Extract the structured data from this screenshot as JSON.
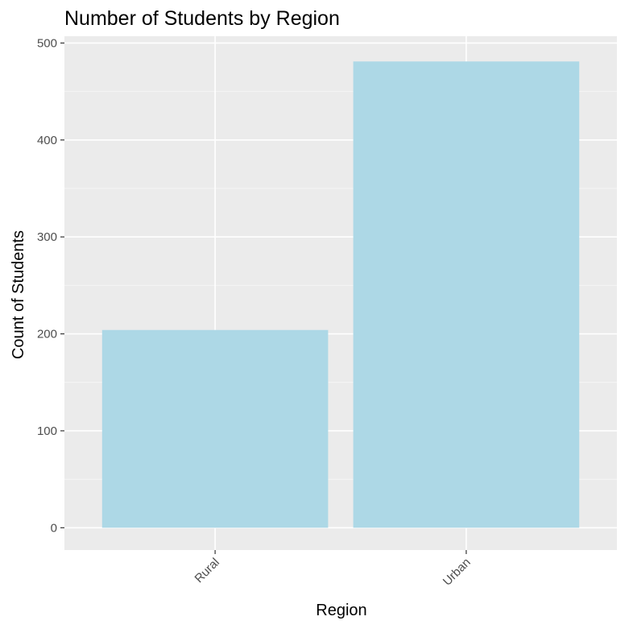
{
  "chart_data": {
    "type": "bar",
    "title": "Number of Students by Region",
    "xlabel": "Region",
    "ylabel": "Count of Students",
    "categories": [
      "Rural",
      "Urban"
    ],
    "values": [
      204,
      481
    ],
    "ylim": [
      -23,
      507
    ],
    "y_ticks": [
      0,
      100,
      200,
      300,
      400,
      500
    ],
    "y_tick_labels": [
      "0",
      "100",
      "200",
      "300",
      "400",
      "500"
    ],
    "grid": true,
    "legend": "none",
    "colors": {
      "bar_fill": "#ADD8E6",
      "panel_background": "#EBEBEB",
      "grid_major": "#FFFFFF",
      "grid_minor": "#F6F6F6",
      "tick_text": "#4D4D4D",
      "axis_tick": "#333333"
    }
  }
}
